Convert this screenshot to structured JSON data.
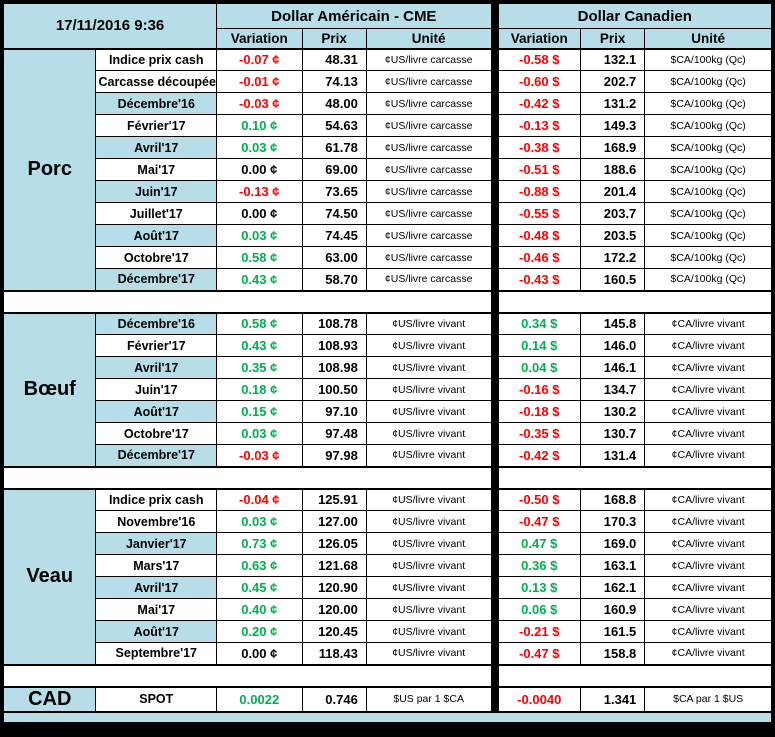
{
  "header": {
    "datetime": "17/11/2016 9:36",
    "us_group": "Dollar Américain - CME",
    "ca_group": "Dollar Canadien",
    "col_variation": "Variation",
    "col_prix": "Prix",
    "col_unite": "Unité"
  },
  "colors": {
    "positive_green": "#00B050",
    "negative_red": "#FF0000",
    "zero_black": "#000000",
    "band_blue": "#B7DEE8",
    "cell_white": "#FFFFFF",
    "grid_black": "#000000"
  },
  "chart_data": {
    "type": "table",
    "sections": [
      {
        "name": "Porc",
        "us_unite": "¢US/livre carcasse",
        "ca_unite": "$CA/100kg (Qc)",
        "rows": [
          {
            "label": "Indice prix cash",
            "us_var": "-0.07 ¢",
            "us_prix": "48.31",
            "ca_var": "-0.58 $",
            "ca_prix": "132.1",
            "shade": false
          },
          {
            "label": "Carcasse découpée",
            "us_var": "-0.01 ¢",
            "us_prix": "74.13",
            "ca_var": "-0.60 $",
            "ca_prix": "202.7",
            "shade": false
          },
          {
            "label": "Décembre'16",
            "us_var": "-0.03 ¢",
            "us_prix": "48.00",
            "ca_var": "-0.42 $",
            "ca_prix": "131.2",
            "shade": true
          },
          {
            "label": "Février'17",
            "us_var": "0.10 ¢",
            "us_prix": "54.63",
            "ca_var": "-0.13 $",
            "ca_prix": "149.3",
            "shade": false
          },
          {
            "label": "Avril'17",
            "us_var": "0.03 ¢",
            "us_prix": "61.78",
            "ca_var": "-0.38 $",
            "ca_prix": "168.9",
            "shade": true
          },
          {
            "label": "Mai'17",
            "us_var": "0.00 ¢",
            "us_prix": "69.00",
            "ca_var": "-0.51 $",
            "ca_prix": "188.6",
            "shade": false
          },
          {
            "label": "Juin'17",
            "us_var": "-0.13 ¢",
            "us_prix": "73.65",
            "ca_var": "-0.88 $",
            "ca_prix": "201.4",
            "shade": true
          },
          {
            "label": "Juillet'17",
            "us_var": "0.00 ¢",
            "us_prix": "74.50",
            "ca_var": "-0.55 $",
            "ca_prix": "203.7",
            "shade": false
          },
          {
            "label": "Août'17",
            "us_var": "0.03 ¢",
            "us_prix": "74.45",
            "ca_var": "-0.48 $",
            "ca_prix": "203.5",
            "shade": true
          },
          {
            "label": "Octobre'17",
            "us_var": "0.58 ¢",
            "us_prix": "63.00",
            "ca_var": "-0.46 $",
            "ca_prix": "172.2",
            "shade": false
          },
          {
            "label": "Décembre'17",
            "us_var": "0.43 ¢",
            "us_prix": "58.70",
            "ca_var": "-0.43 $",
            "ca_prix": "160.5",
            "shade": true
          }
        ]
      },
      {
        "name": "Bœuf",
        "us_unite": "¢US/livre vivant",
        "ca_unite": "¢CA/livre vivant",
        "rows": [
          {
            "label": "Décembre'16",
            "us_var": "0.58 ¢",
            "us_prix": "108.78",
            "ca_var": "0.34 $",
            "ca_prix": "145.8",
            "shade": true
          },
          {
            "label": "Février'17",
            "us_var": "0.43 ¢",
            "us_prix": "108.93",
            "ca_var": "0.14 $",
            "ca_prix": "146.0",
            "shade": false
          },
          {
            "label": "Avril'17",
            "us_var": "0.35 ¢",
            "us_prix": "108.98",
            "ca_var": "0.04 $",
            "ca_prix": "146.1",
            "shade": true
          },
          {
            "label": "Juin'17",
            "us_var": "0.18 ¢",
            "us_prix": "100.50",
            "ca_var": "-0.16 $",
            "ca_prix": "134.7",
            "shade": false
          },
          {
            "label": "Août'17",
            "us_var": "0.15 ¢",
            "us_prix": "97.10",
            "ca_var": "-0.18 $",
            "ca_prix": "130.2",
            "shade": true
          },
          {
            "label": "Octobre'17",
            "us_var": "0.03 ¢",
            "us_prix": "97.48",
            "ca_var": "-0.35 $",
            "ca_prix": "130.7",
            "shade": false
          },
          {
            "label": "Décembre'17",
            "us_var": "-0.03 ¢",
            "us_prix": "97.98",
            "ca_var": "-0.42 $",
            "ca_prix": "131.4",
            "shade": true
          }
        ]
      },
      {
        "name": "Veau",
        "us_unite": "¢US/livre vivant",
        "ca_unite": "¢CA/livre vivant",
        "rows": [
          {
            "label": "Indice prix cash",
            "us_var": "-0.04 ¢",
            "us_prix": "125.91",
            "ca_var": "-0.50 $",
            "ca_prix": "168.8",
            "shade": false
          },
          {
            "label": "Novembre'16",
            "us_var": "0.03 ¢",
            "us_prix": "127.00",
            "ca_var": "-0.47 $",
            "ca_prix": "170.3",
            "shade": false
          },
          {
            "label": "Janvier'17",
            "us_var": "0.73 ¢",
            "us_prix": "126.05",
            "ca_var": "0.47 $",
            "ca_prix": "169.0",
            "shade": true
          },
          {
            "label": "Mars'17",
            "us_var": "0.63 ¢",
            "us_prix": "121.68",
            "ca_var": "0.36 $",
            "ca_prix": "163.1",
            "shade": false
          },
          {
            "label": "Avril'17",
            "us_var": "0.45 ¢",
            "us_prix": "120.90",
            "ca_var": "0.13 $",
            "ca_prix": "162.1",
            "shade": true
          },
          {
            "label": "Mai'17",
            "us_var": "0.40 ¢",
            "us_prix": "120.00",
            "ca_var": "0.06 $",
            "ca_prix": "160.9",
            "shade": false
          },
          {
            "label": "Août'17",
            "us_var": "0.20 ¢",
            "us_prix": "120.45",
            "ca_var": "-0.21 $",
            "ca_prix": "161.5",
            "shade": true
          },
          {
            "label": "Septembre'17",
            "us_var": "0.00 ¢",
            "us_prix": "118.43",
            "ca_var": "-0.47 $",
            "ca_prix": "158.8",
            "shade": false
          }
        ]
      },
      {
        "name": "CAD",
        "us_unite": "$US par 1 $CA",
        "ca_unite": "$CA par 1 $US",
        "rows": [
          {
            "label": "SPOT",
            "us_var": "0.0022",
            "us_prix": "0.746",
            "ca_var": "-0.0040",
            "ca_prix": "1.341",
            "shade": false
          }
        ]
      }
    ]
  }
}
